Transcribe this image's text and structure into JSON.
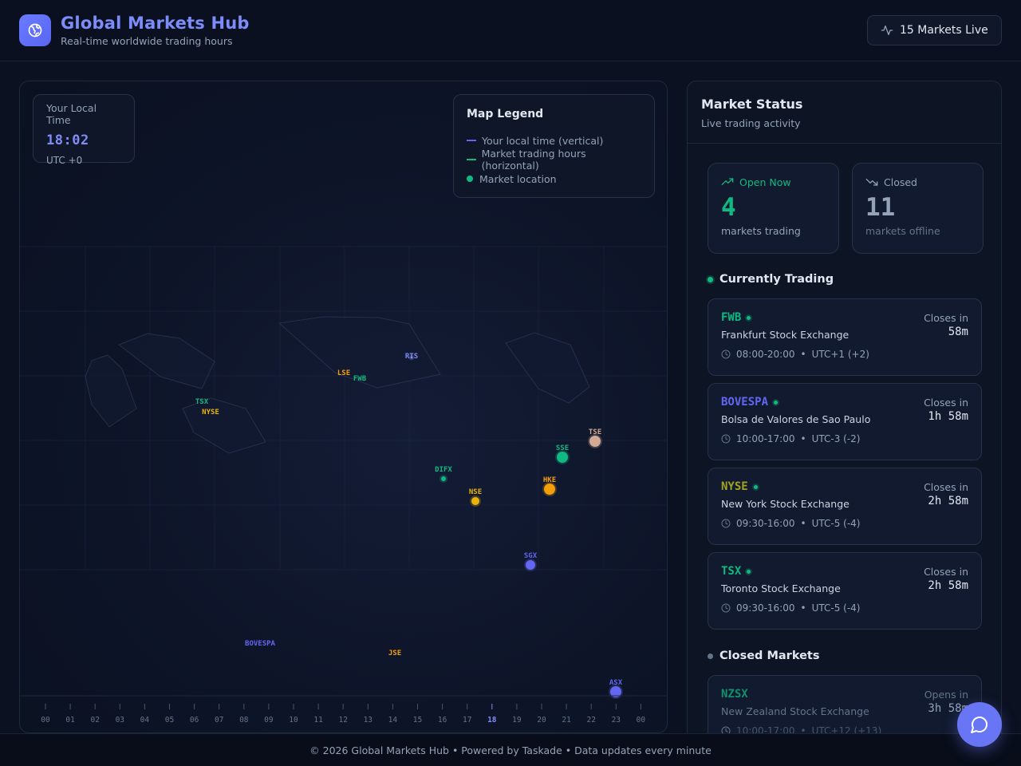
{
  "header": {
    "title": "Global Markets Hub",
    "subtitle": "Real-time worldwide trading hours",
    "live_label": "15 Markets Live"
  },
  "local_time": {
    "label": "Your Local Time",
    "time": "18:02",
    "utc": "UTC +0"
  },
  "legend": {
    "title": "Map Legend",
    "items": [
      "Your local time (vertical)",
      "Market trading hours (horizontal)",
      "Market location"
    ],
    "colors": [
      "#6366f1",
      "#10b981",
      "#10b981"
    ]
  },
  "map_markets": [
    {
      "code": "RTS",
      "color": "#818cf8",
      "open": false
    },
    {
      "code": "LSE",
      "color": "#f59e0b",
      "open": false
    },
    {
      "code": "FWB",
      "color": "#10b981",
      "open": true
    },
    {
      "code": "TSX",
      "color": "#10b981",
      "open": true
    },
    {
      "code": "NYSE",
      "color": "#eab308",
      "open": true
    },
    {
      "code": "TSE",
      "color": "#d4a995",
      "open": false
    },
    {
      "code": "SSE",
      "color": "#10b981",
      "open": false
    },
    {
      "code": "DIFX",
      "color": "#10b981",
      "open": false
    },
    {
      "code": "HKE",
      "color": "#f59e0b",
      "open": false
    },
    {
      "code": "NSE",
      "color": "#eab308",
      "open": false
    },
    {
      "code": "SGX",
      "color": "#6366f1",
      "open": false
    },
    {
      "code": "BOVESPA",
      "color": "#6366f1",
      "open": true
    },
    {
      "code": "JSE",
      "color": "#f59e0b",
      "open": false
    },
    {
      "code": "ASX",
      "color": "#6366f1",
      "open": false
    }
  ],
  "timeline": {
    "hours": [
      "00",
      "01",
      "02",
      "03",
      "04",
      "05",
      "06",
      "07",
      "08",
      "09",
      "10",
      "11",
      "12",
      "13",
      "14",
      "15",
      "16",
      "17",
      "18",
      "19",
      "20",
      "21",
      "22",
      "23",
      "00"
    ],
    "current": "18"
  },
  "status": {
    "title": "Market Status",
    "subtitle": "Live trading activity",
    "open": {
      "label": "Open Now",
      "count": "4",
      "desc": "markets trading"
    },
    "closed": {
      "label": "Closed",
      "count": "11",
      "desc": "markets offline"
    },
    "trading_title": "Currently Trading",
    "closed_title": "Closed Markets"
  },
  "trading": [
    {
      "code": "FWB",
      "color": "#10b981",
      "name": "Frankfurt Stock Exchange",
      "hours": "08:00-20:00",
      "tz": "UTC+1 (+2)",
      "label": "Closes in",
      "value": "58m"
    },
    {
      "code": "BOVESPA",
      "color": "#6366f1",
      "name": "Bolsa de Valores de Sao Paulo",
      "hours": "10:00-17:00",
      "tz": "UTC-3 (-2)",
      "label": "Closes in",
      "value": "1h 58m"
    },
    {
      "code": "NYSE",
      "color": "#a3a322",
      "name": "New York Stock Exchange",
      "hours": "09:30-16:00",
      "tz": "UTC-5 (-4)",
      "label": "Closes in",
      "value": "2h 58m"
    },
    {
      "code": "TSX",
      "color": "#10b981",
      "name": "Toronto Stock Exchange",
      "hours": "09:30-16:00",
      "tz": "UTC-5 (-4)",
      "label": "Closes in",
      "value": "2h 58m"
    }
  ],
  "closed": [
    {
      "code": "NZSX",
      "color": "#10b981",
      "name": "New Zealand Stock Exchange",
      "hours": "10:00-17:00",
      "tz": "UTC+12 (+13)",
      "label": "Opens in",
      "value": "3h 58m"
    }
  ],
  "footer": "© 2026 Global Markets Hub • Powered by Taskade • Data updates every minute",
  "sep": "•"
}
